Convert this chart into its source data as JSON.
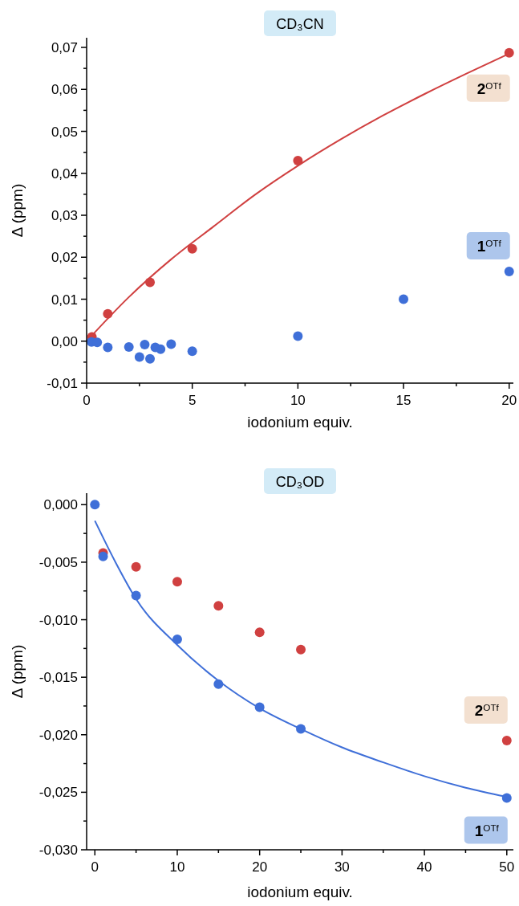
{
  "chart_data": [
    {
      "type": "scatter",
      "title": "CD₃CN",
      "xlabel": "iodonium equiv.",
      "ylabel": "Δ (ppm)",
      "marker": "circle",
      "xlim": [
        0,
        20.2
      ],
      "ylim": [
        -0.01,
        0.0723
      ],
      "xticks": [
        0,
        {
          "value": 2.5,
          "label": null
        },
        5,
        {
          "value": 7.5,
          "label": null
        },
        10,
        {
          "value": 12.5,
          "label": null
        },
        15,
        {
          "value": 17.5,
          "label": null
        },
        20
      ],
      "yticks": [
        {
          "value": -0.01,
          "label": "-0,01"
        },
        {
          "value": -0.005,
          "label": null
        },
        {
          "value": 0,
          "label": "0,00"
        },
        {
          "value": 0.005,
          "label": null
        },
        {
          "value": 0.01,
          "label": "0,01"
        },
        {
          "value": 0.015,
          "label": null
        },
        {
          "value": 0.02,
          "label": "0,02"
        },
        {
          "value": 0.025,
          "label": null
        },
        {
          "value": 0.03,
          "label": "0,03"
        },
        {
          "value": 0.035,
          "label": null
        },
        {
          "value": 0.04,
          "label": "0,04"
        },
        {
          "value": 0.045,
          "label": null
        },
        {
          "value": 0.05,
          "label": "0,05"
        },
        {
          "value": 0.055,
          "label": null
        },
        {
          "value": 0.06,
          "label": "0,06"
        },
        {
          "value": 0.065,
          "label": null
        },
        {
          "value": 0.07,
          "label": "0,07"
        }
      ],
      "series": [
        {
          "type": "line",
          "marker": "none",
          "color": "#d04040",
          "x": [
            0,
            2,
            4,
            6,
            8,
            10,
            12,
            14,
            16,
            18,
            20
          ],
          "values": [
            0,
            0.0105,
            0.0195,
            0.0273,
            0.035,
            0.0418,
            0.048,
            0.0537,
            0.0589,
            0.0638,
            0.0685
          ]
        },
        {
          "name": "2$^{OTf}$",
          "color": "#d04040",
          "x": [
            0.25,
            1,
            3,
            5,
            10,
            20
          ],
          "values": [
            0.001,
            0.0065,
            0.014,
            0.022,
            0.043,
            0.0687
          ]
        },
        {
          "name": "1$^{OTf}$",
          "color": "#3f6fd8",
          "x": [
            0.23,
            0.5,
            1,
            2,
            2.5,
            2.75,
            3,
            3.25,
            3.5,
            4,
            5,
            10,
            15,
            20
          ],
          "values": [
            -0.0002,
            -0.0003,
            -0.0015,
            -0.0014,
            -0.0038,
            -0.0008,
            -0.0042,
            -0.0015,
            -0.0019,
            -0.0007,
            -0.0024,
            0.0012,
            0.01,
            0.0166
          ]
        }
      ]
    },
    {
      "type": "scatter",
      "title": "CD₃OD",
      "xlabel": "iodonium equiv.",
      "ylabel": "Δ (ppm)",
      "marker": "circle",
      "xlim": [
        -1,
        50.8
      ],
      "ylim": [
        -0.03,
        0.001
      ],
      "xticks": [
        0,
        {
          "value": 5,
          "label": null
        },
        10,
        {
          "value": 15,
          "label": null
        },
        20,
        {
          "value": 25,
          "label": null
        },
        30,
        {
          "value": 35,
          "label": null
        },
        40,
        {
          "value": 45,
          "label": null
        },
        50
      ],
      "yticks": [
        {
          "value": -0.03,
          "label": "-0,030"
        },
        {
          "value": -0.0275,
          "label": null
        },
        {
          "value": -0.025,
          "label": "-0,025"
        },
        {
          "value": -0.0225,
          "label": null
        },
        {
          "value": -0.02,
          "label": "-0,020"
        },
        {
          "value": -0.0175,
          "label": null
        },
        {
          "value": -0.015,
          "label": "-0,015"
        },
        {
          "value": -0.0125,
          "label": null
        },
        {
          "value": -0.01,
          "label": "-0,010"
        },
        {
          "value": -0.0075,
          "label": null
        },
        {
          "value": -0.005,
          "label": "-0,005"
        },
        {
          "value": -0.0025,
          "label": null
        },
        {
          "value": 0,
          "label": "0,000"
        }
      ],
      "series": [
        {
          "type": "line",
          "marker": "none",
          "color": "#3f6fd8",
          "x": [
            0,
            2.5,
            5,
            10,
            15,
            20,
            25,
            30,
            35,
            40,
            45,
            50
          ],
          "values": [
            -0.0014,
            -0.005,
            -0.0082,
            -0.0122,
            -0.0153,
            -0.0177,
            -0.0195,
            -0.0211,
            -0.0224,
            -0.0236,
            -0.0246,
            -0.0254
          ]
        },
        {
          "name": "2$^{OTf}$",
          "color": "#d04040",
          "x": [
            1,
            5,
            10,
            15,
            20,
            25,
            50
          ],
          "values": [
            -0.0042,
            -0.0054,
            -0.0067,
            -0.0088,
            -0.0111,
            -0.0126,
            -0.0205
          ]
        },
        {
          "name": "1$^{OTf}$",
          "color": "#3f6fd8",
          "x": [
            0,
            1,
            5,
            10,
            15,
            20,
            25,
            50
          ],
          "values": [
            0,
            -0.0045,
            -0.0079,
            -0.0117,
            -0.0156,
            -0.0176,
            -0.0195,
            -0.0255
          ]
        }
      ]
    }
  ]
}
